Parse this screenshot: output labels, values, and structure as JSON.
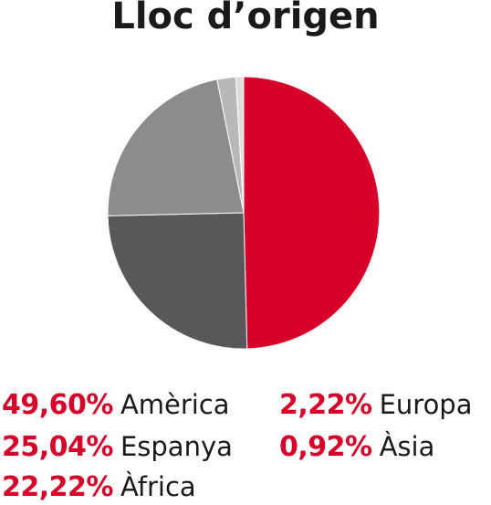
{
  "chart_data": {
    "type": "pie",
    "title": "Lloc d’origen",
    "slices": [
      {
        "label": "Amèrica",
        "pct_label": "49,60%",
        "value": 49.6,
        "color": "#d6002a"
      },
      {
        "label": "Espanya",
        "pct_label": "25,04%",
        "value": 25.04,
        "color": "#58585b"
      },
      {
        "label": "Àfrica",
        "pct_label": "22,22%",
        "value": 22.22,
        "color": "#8c8c8e"
      },
      {
        "label": "Europa",
        "pct_label": "2,22%",
        "value": 2.22,
        "color": "#b7b8ba"
      },
      {
        "label": "Àsia",
        "pct_label": "0,92%",
        "value": 0.92,
        "color": "#dcdde0"
      }
    ],
    "percent_color": "#d6002a"
  }
}
